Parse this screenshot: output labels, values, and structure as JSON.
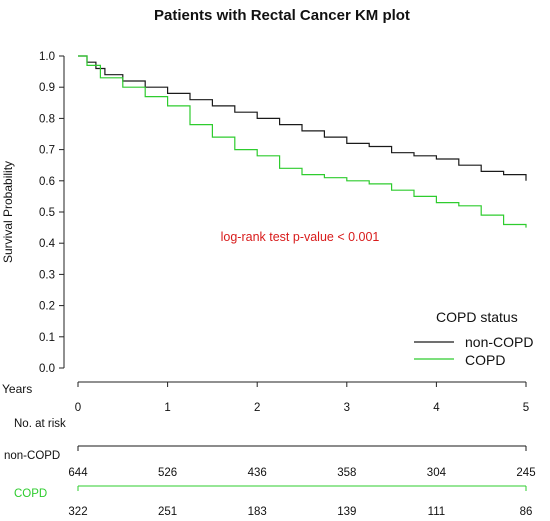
{
  "chart_data": {
    "type": "line",
    "title": "Patients with Rectal Cancer KM plot",
    "ylabel": "Survival Probability",
    "xlabel": "Years",
    "xlim": [
      0,
      5
    ],
    "ylim": [
      0,
      1
    ],
    "x_ticks": [
      "0",
      "1",
      "2",
      "3",
      "4",
      "5"
    ],
    "y_ticks": [
      "0.0",
      "0.1",
      "0.2",
      "0.3",
      "0.4",
      "0.5",
      "0.6",
      "0.7",
      "0.8",
      "0.9",
      "1.0"
    ],
    "grid": false,
    "annotation": "log-rank test p-value < 0.001",
    "legend": {
      "title": "COPD status",
      "position": "bottom-right"
    },
    "series": [
      {
        "name": "non-COPD",
        "color": "#1a1a1a",
        "x": [
          0,
          0.1,
          0.2,
          0.3,
          0.5,
          0.75,
          1.0,
          1.25,
          1.5,
          1.75,
          2.0,
          2.25,
          2.5,
          2.75,
          3.0,
          3.25,
          3.5,
          3.75,
          4.0,
          4.25,
          4.5,
          4.75,
          5.0
        ],
        "y": [
          1.0,
          0.98,
          0.96,
          0.94,
          0.92,
          0.9,
          0.88,
          0.86,
          0.84,
          0.82,
          0.8,
          0.78,
          0.76,
          0.74,
          0.72,
          0.71,
          0.69,
          0.68,
          0.67,
          0.65,
          0.63,
          0.62,
          0.6
        ]
      },
      {
        "name": "COPD",
        "color": "#2ecc2e",
        "x": [
          0,
          0.1,
          0.25,
          0.5,
          0.75,
          1.0,
          1.25,
          1.5,
          1.75,
          2.0,
          2.25,
          2.5,
          2.75,
          3.0,
          3.25,
          3.5,
          3.75,
          4.0,
          4.25,
          4.5,
          4.75,
          5.0
        ],
        "y": [
          1.0,
          0.97,
          0.93,
          0.9,
          0.87,
          0.84,
          0.78,
          0.74,
          0.7,
          0.68,
          0.64,
          0.62,
          0.61,
          0.6,
          0.59,
          0.57,
          0.55,
          0.53,
          0.52,
          0.49,
          0.46,
          0.45
        ]
      }
    ],
    "risk_table": {
      "title": "No. at risk",
      "times": [
        0,
        1,
        2,
        3,
        4,
        5
      ],
      "rows": [
        {
          "label": "non-COPD",
          "color": "#1a1a1a",
          "values": [
            644,
            526,
            436,
            358,
            304,
            245
          ]
        },
        {
          "label": "COPD",
          "color": "#2ecc2e",
          "values": [
            322,
            251,
            183,
            139,
            111,
            86
          ]
        }
      ]
    }
  }
}
